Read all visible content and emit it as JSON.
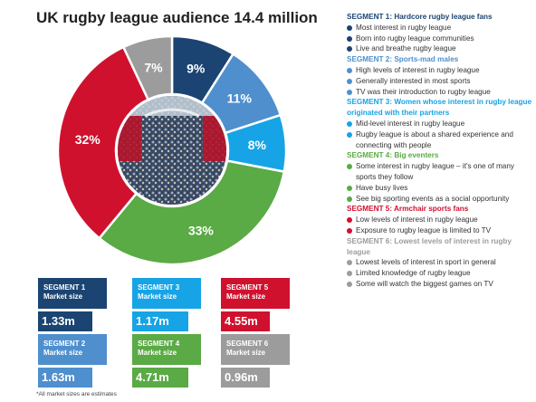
{
  "title": "UK rugby league audience 14.4 million",
  "footnote": "*All market sizes are estimates",
  "chart_data": {
    "type": "pie",
    "style": "donut",
    "title": "UK rugby league audience 14.4 million",
    "slices": [
      {
        "segment": 1,
        "value": 9,
        "label": "9%",
        "color": "#1b4472"
      },
      {
        "segment": 2,
        "value": 11,
        "label": "11%",
        "color": "#4f8fce"
      },
      {
        "segment": 3,
        "value": 8,
        "label": "8%",
        "color": "#16a4e6"
      },
      {
        "segment": 4,
        "value": 33,
        "label": "33%",
        "color": "#5aaa45"
      },
      {
        "segment": 5,
        "value": 32,
        "label": "32%",
        "color": "#d0112e"
      },
      {
        "segment": 6,
        "value": 7,
        "label": "7%",
        "color": "#9c9c9c"
      }
    ]
  },
  "market_boxes": [
    {
      "segment_label": "SEGMENT 1",
      "market_label": "Market size",
      "value": "1.33m",
      "color": "#1b4472"
    },
    {
      "segment_label": "SEGMENT 2",
      "market_label": "Market size",
      "value": "1.63m",
      "color": "#4f8fce"
    },
    {
      "segment_label": "SEGMENT 3",
      "market_label": "Market size",
      "value": "1.17m",
      "color": "#16a4e6"
    },
    {
      "segment_label": "SEGMENT 4",
      "market_label": "Market size",
      "value": "4.71m",
      "color": "#5aaa45"
    },
    {
      "segment_label": "SEGMENT 5",
      "market_label": "Market size",
      "value": "4.55m",
      "color": "#d0112e"
    },
    {
      "segment_label": "SEGMENT 6",
      "market_label": "Market size",
      "value": "0.96m",
      "color": "#9c9c9c"
    }
  ],
  "segments": [
    {
      "heading": "SEGMENT 1: Hardcore rugby league fans",
      "color": "#1b4472",
      "items": [
        "Most interest in rugby league",
        "Born into rugby league communities",
        "Live and breathe rugby league"
      ]
    },
    {
      "heading": "SEGMENT 2: Sports-mad males",
      "color": "#4f8fce",
      "items": [
        "High levels of interest in rugby league",
        "Generally interested in most sports",
        "TV was their introduction to rugby league"
      ]
    },
    {
      "heading": "SEGMENT 3: Women whose interest in rugby league originated with their partners",
      "color": "#16a4e6",
      "items": [
        "Mid-level interest in rugby league",
        "Rugby league is about a shared experience and connecting with people"
      ]
    },
    {
      "heading": "SEGMENT 4: Big eventers",
      "color": "#5aaa45",
      "items": [
        "Some interest in rugby league – it's one of many sports they follow",
        "Have busy lives",
        "See big sporting events as a social opportunity"
      ]
    },
    {
      "heading": "SEGMENT 5: Armchair sports fans",
      "color": "#d0112e",
      "items": [
        "Low levels of interest in rugby league",
        "Exposure to rugby league is limited to TV"
      ]
    },
    {
      "heading": "SEGMENT 6: Lowest levels of interest in rugby league",
      "color": "#9c9c9c",
      "items": [
        "Lowest levels of interest in sport in general",
        "Limited knowledge of rugby league",
        "Some will watch the biggest games on TV"
      ]
    }
  ]
}
